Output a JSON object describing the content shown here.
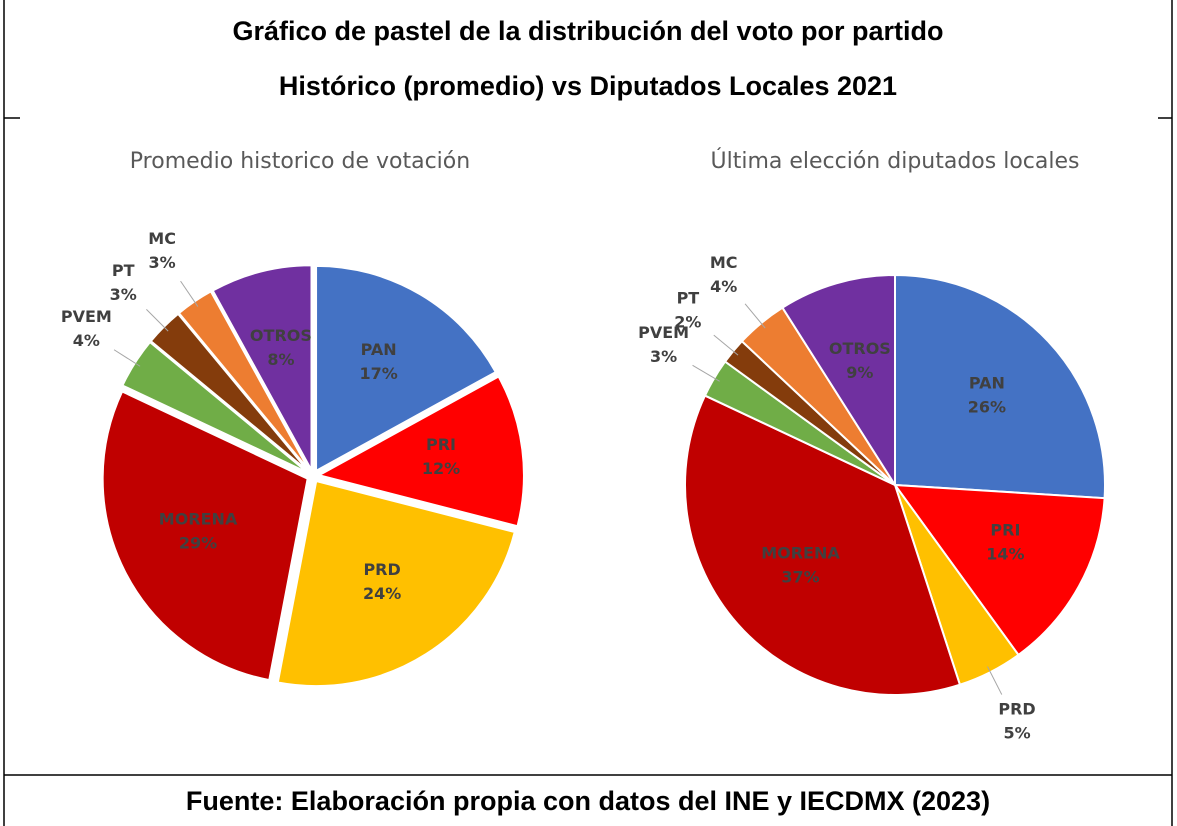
{
  "header": {
    "title_lines": [
      "Gráfico de pastel de la distribución del voto por partido",
      "Histórico (promedio) vs Diputados Locales 2021"
    ]
  },
  "chart_data": [
    {
      "type": "pie",
      "title": "Promedio historico de votación",
      "categories": [
        "PAN",
        "PRI",
        "PRD",
        "MORENA",
        "PVEM",
        "PT",
        "MC",
        "OTROS"
      ],
      "values": [
        17,
        12,
        24,
        29,
        4,
        3,
        3,
        8
      ],
      "value_labels": [
        "17%",
        "12%",
        "24%",
        "29%",
        "4%",
        "3%",
        "3%",
        "8%"
      ],
      "colors": [
        "#4472c4",
        "#ff0000",
        "#ffc000",
        "#c00000",
        "#70ad47",
        "#843c0c",
        "#ed7d31",
        "#7030a0"
      ]
    },
    {
      "type": "pie",
      "title": "Última elección diputados locales",
      "categories": [
        "PAN",
        "PRI",
        "PRD",
        "MORENA",
        "PVEM",
        "PT",
        "MC",
        "OTROS"
      ],
      "values": [
        26,
        14,
        5,
        37,
        3,
        2,
        4,
        9
      ],
      "value_labels": [
        "26%",
        "14%",
        "5%",
        "37%",
        "3%",
        "2%",
        "4%",
        "9%"
      ],
      "colors": [
        "#4472c4",
        "#ff0000",
        "#ffc000",
        "#c00000",
        "#70ad47",
        "#843c0c",
        "#ed7d31",
        "#7030a0"
      ]
    }
  ],
  "source": "Fuente: Elaboración propia con datos del INE y IECDMX (2023)"
}
